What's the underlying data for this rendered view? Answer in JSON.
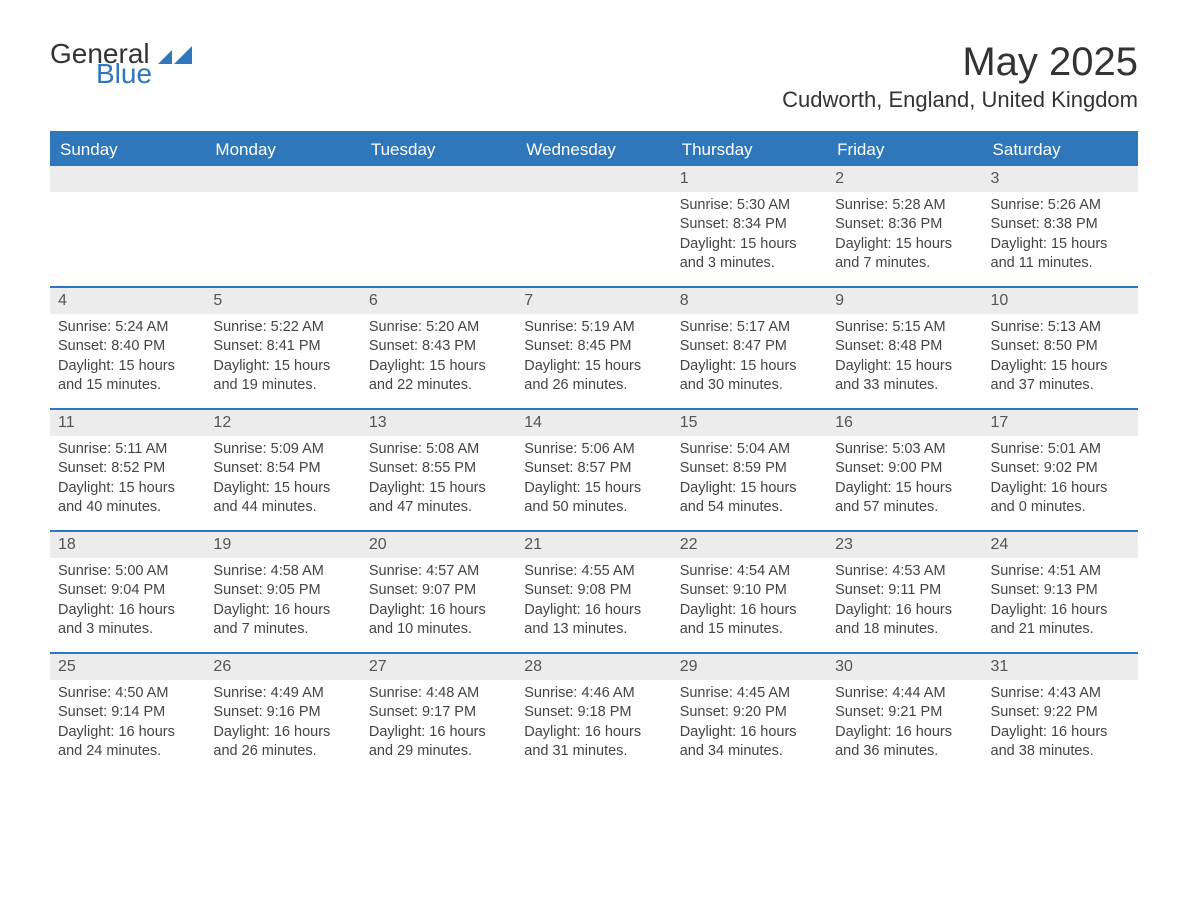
{
  "logo": {
    "text1": "General",
    "text2": "Blue",
    "icon_color": "#2f77bb"
  },
  "title": "May 2025",
  "subtitle": "Cudworth, England, United Kingdom",
  "colors": {
    "accent": "#2f77bb",
    "header_bg": "#2f77bb",
    "header_text": "#ffffff",
    "daynum_bg": "#ececec",
    "daynum_text": "#555555",
    "body_text": "#444444",
    "background": "#ffffff"
  },
  "typography": {
    "title_fontsize": 40,
    "subtitle_fontsize": 22,
    "dow_fontsize": 17,
    "daynum_fontsize": 16,
    "body_fontsize": 14.5,
    "font_family": "Segoe UI"
  },
  "days_of_week": [
    "Sunday",
    "Monday",
    "Tuesday",
    "Wednesday",
    "Thursday",
    "Friday",
    "Saturday"
  ],
  "weeks": [
    [
      null,
      null,
      null,
      null,
      {
        "n": "1",
        "sunrise": "Sunrise: 5:30 AM",
        "sunset": "Sunset: 8:34 PM",
        "daylight": "Daylight: 15 hours and 3 minutes."
      },
      {
        "n": "2",
        "sunrise": "Sunrise: 5:28 AM",
        "sunset": "Sunset: 8:36 PM",
        "daylight": "Daylight: 15 hours and 7 minutes."
      },
      {
        "n": "3",
        "sunrise": "Sunrise: 5:26 AM",
        "sunset": "Sunset: 8:38 PM",
        "daylight": "Daylight: 15 hours and 11 minutes."
      }
    ],
    [
      {
        "n": "4",
        "sunrise": "Sunrise: 5:24 AM",
        "sunset": "Sunset: 8:40 PM",
        "daylight": "Daylight: 15 hours and 15 minutes."
      },
      {
        "n": "5",
        "sunrise": "Sunrise: 5:22 AM",
        "sunset": "Sunset: 8:41 PM",
        "daylight": "Daylight: 15 hours and 19 minutes."
      },
      {
        "n": "6",
        "sunrise": "Sunrise: 5:20 AM",
        "sunset": "Sunset: 8:43 PM",
        "daylight": "Daylight: 15 hours and 22 minutes."
      },
      {
        "n": "7",
        "sunrise": "Sunrise: 5:19 AM",
        "sunset": "Sunset: 8:45 PM",
        "daylight": "Daylight: 15 hours and 26 minutes."
      },
      {
        "n": "8",
        "sunrise": "Sunrise: 5:17 AM",
        "sunset": "Sunset: 8:47 PM",
        "daylight": "Daylight: 15 hours and 30 minutes."
      },
      {
        "n": "9",
        "sunrise": "Sunrise: 5:15 AM",
        "sunset": "Sunset: 8:48 PM",
        "daylight": "Daylight: 15 hours and 33 minutes."
      },
      {
        "n": "10",
        "sunrise": "Sunrise: 5:13 AM",
        "sunset": "Sunset: 8:50 PM",
        "daylight": "Daylight: 15 hours and 37 minutes."
      }
    ],
    [
      {
        "n": "11",
        "sunrise": "Sunrise: 5:11 AM",
        "sunset": "Sunset: 8:52 PM",
        "daylight": "Daylight: 15 hours and 40 minutes."
      },
      {
        "n": "12",
        "sunrise": "Sunrise: 5:09 AM",
        "sunset": "Sunset: 8:54 PM",
        "daylight": "Daylight: 15 hours and 44 minutes."
      },
      {
        "n": "13",
        "sunrise": "Sunrise: 5:08 AM",
        "sunset": "Sunset: 8:55 PM",
        "daylight": "Daylight: 15 hours and 47 minutes."
      },
      {
        "n": "14",
        "sunrise": "Sunrise: 5:06 AM",
        "sunset": "Sunset: 8:57 PM",
        "daylight": "Daylight: 15 hours and 50 minutes."
      },
      {
        "n": "15",
        "sunrise": "Sunrise: 5:04 AM",
        "sunset": "Sunset: 8:59 PM",
        "daylight": "Daylight: 15 hours and 54 minutes."
      },
      {
        "n": "16",
        "sunrise": "Sunrise: 5:03 AM",
        "sunset": "Sunset: 9:00 PM",
        "daylight": "Daylight: 15 hours and 57 minutes."
      },
      {
        "n": "17",
        "sunrise": "Sunrise: 5:01 AM",
        "sunset": "Sunset: 9:02 PM",
        "daylight": "Daylight: 16 hours and 0 minutes."
      }
    ],
    [
      {
        "n": "18",
        "sunrise": "Sunrise: 5:00 AM",
        "sunset": "Sunset: 9:04 PM",
        "daylight": "Daylight: 16 hours and 3 minutes."
      },
      {
        "n": "19",
        "sunrise": "Sunrise: 4:58 AM",
        "sunset": "Sunset: 9:05 PM",
        "daylight": "Daylight: 16 hours and 7 minutes."
      },
      {
        "n": "20",
        "sunrise": "Sunrise: 4:57 AM",
        "sunset": "Sunset: 9:07 PM",
        "daylight": "Daylight: 16 hours and 10 minutes."
      },
      {
        "n": "21",
        "sunrise": "Sunrise: 4:55 AM",
        "sunset": "Sunset: 9:08 PM",
        "daylight": "Daylight: 16 hours and 13 minutes."
      },
      {
        "n": "22",
        "sunrise": "Sunrise: 4:54 AM",
        "sunset": "Sunset: 9:10 PM",
        "daylight": "Daylight: 16 hours and 15 minutes."
      },
      {
        "n": "23",
        "sunrise": "Sunrise: 4:53 AM",
        "sunset": "Sunset: 9:11 PM",
        "daylight": "Daylight: 16 hours and 18 minutes."
      },
      {
        "n": "24",
        "sunrise": "Sunrise: 4:51 AM",
        "sunset": "Sunset: 9:13 PM",
        "daylight": "Daylight: 16 hours and 21 minutes."
      }
    ],
    [
      {
        "n": "25",
        "sunrise": "Sunrise: 4:50 AM",
        "sunset": "Sunset: 9:14 PM",
        "daylight": "Daylight: 16 hours and 24 minutes."
      },
      {
        "n": "26",
        "sunrise": "Sunrise: 4:49 AM",
        "sunset": "Sunset: 9:16 PM",
        "daylight": "Daylight: 16 hours and 26 minutes."
      },
      {
        "n": "27",
        "sunrise": "Sunrise: 4:48 AM",
        "sunset": "Sunset: 9:17 PM",
        "daylight": "Daylight: 16 hours and 29 minutes."
      },
      {
        "n": "28",
        "sunrise": "Sunrise: 4:46 AM",
        "sunset": "Sunset: 9:18 PM",
        "daylight": "Daylight: 16 hours and 31 minutes."
      },
      {
        "n": "29",
        "sunrise": "Sunrise: 4:45 AM",
        "sunset": "Sunset: 9:20 PM",
        "daylight": "Daylight: 16 hours and 34 minutes."
      },
      {
        "n": "30",
        "sunrise": "Sunrise: 4:44 AM",
        "sunset": "Sunset: 9:21 PM",
        "daylight": "Daylight: 16 hours and 36 minutes."
      },
      {
        "n": "31",
        "sunrise": "Sunrise: 4:43 AM",
        "sunset": "Sunset: 9:22 PM",
        "daylight": "Daylight: 16 hours and 38 minutes."
      }
    ]
  ]
}
